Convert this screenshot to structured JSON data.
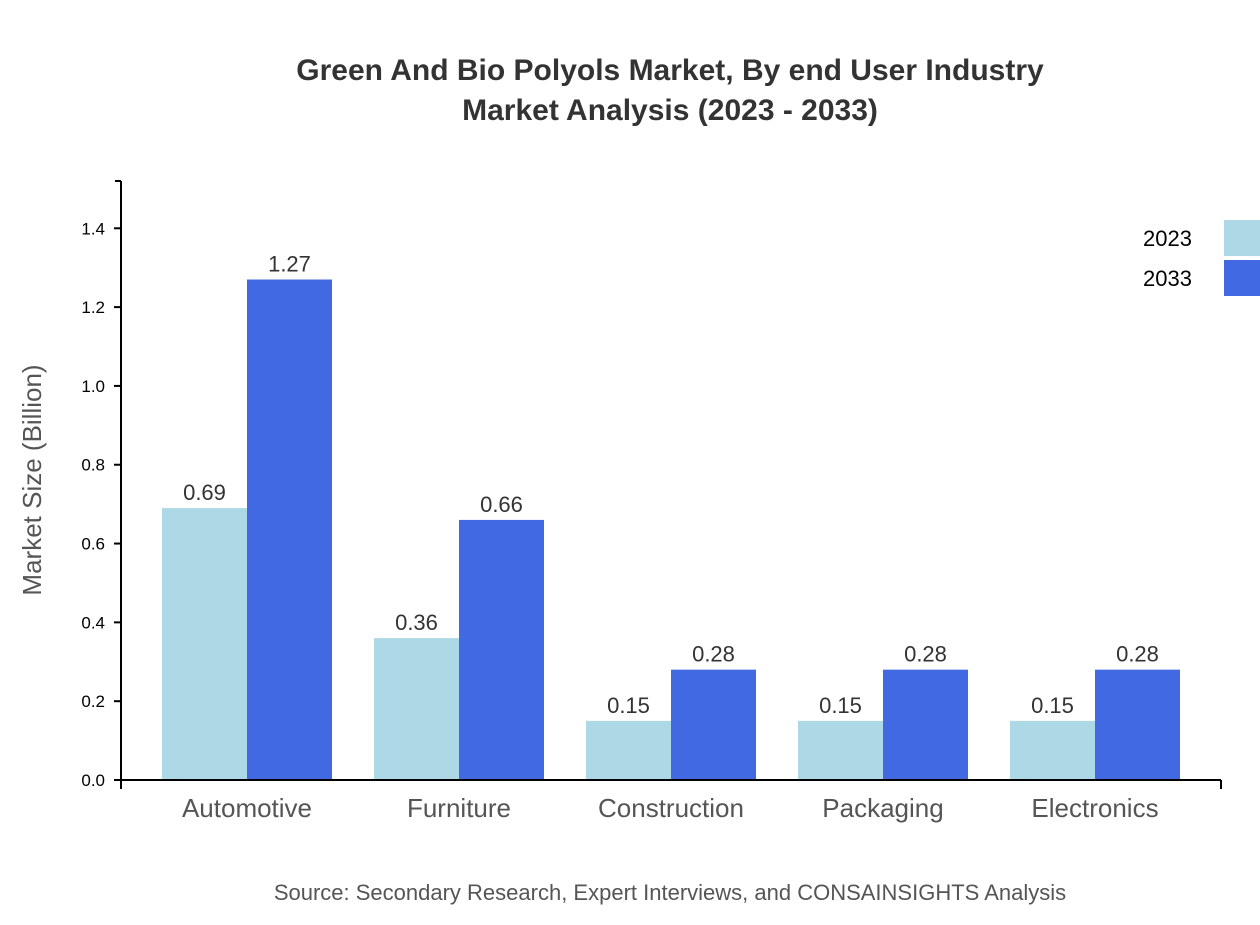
{
  "chart_data": {
    "type": "bar",
    "title": [
      "Green And Bio Polyols Market, By end User Industry",
      "Market Analysis (2023 - 2033)"
    ],
    "xlabel": "",
    "ylabel": "Market Size (Billion)",
    "categories": [
      "Automotive",
      "Furniture",
      "Construction",
      "Packaging",
      "Electronics"
    ],
    "series": [
      {
        "name": "2023",
        "color": "#add8e6",
        "values": [
          0.69,
          0.36,
          0.15,
          0.15,
          0.15
        ]
      },
      {
        "name": "2033",
        "color": "#4169e1",
        "values": [
          1.27,
          0.66,
          0.28,
          0.28,
          0.28
        ]
      }
    ],
    "ylim": [
      0,
      1.52
    ],
    "yticks": [
      "0.0",
      "0.2",
      "0.4",
      "0.6",
      "0.8",
      "1.0",
      "1.2",
      "1.4"
    ],
    "grid": false,
    "legend_position": "top-right",
    "source": "Source: Secondary Research, Expert Interviews, and CONSAINSIGHTS Analysis"
  }
}
